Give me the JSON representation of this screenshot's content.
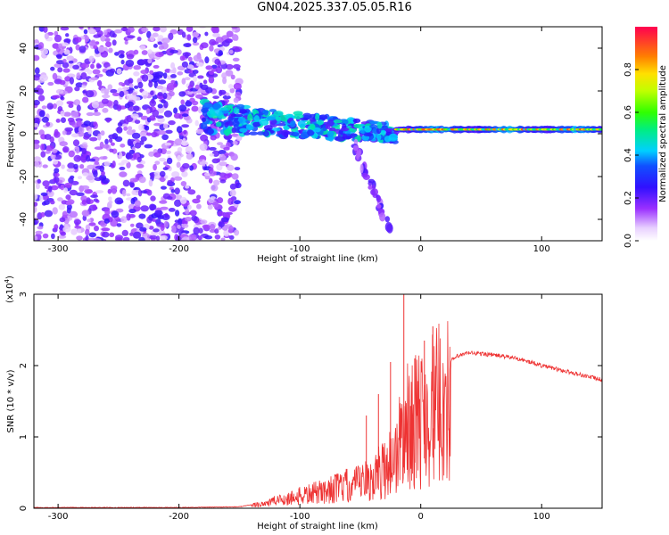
{
  "title": "GN04.2025.337.05.05.R16",
  "chart_data": [
    {
      "type": "heatmap",
      "title": "",
      "xlabel": "Height of straight line (km)",
      "ylabel": "Frequency (Hz)",
      "xlim": [
        -320,
        150
      ],
      "ylim": [
        -50,
        50
      ],
      "x_ticks": [
        -300,
        -200,
        -100,
        0,
        100
      ],
      "y_ticks": [
        -40,
        -20,
        0,
        20,
        40
      ],
      "grid": false,
      "regions": [
        {
          "label": "broadband noise",
          "x": [
            -320,
            -150
          ],
          "y": [
            -50,
            50
          ],
          "amplitude": [
            0.05,
            0.25
          ]
        },
        {
          "label": "signal band",
          "x": [
            -180,
            -20
          ],
          "y": [
            -15,
            15
          ],
          "amplitude": [
            0.2,
            0.5
          ]
        },
        {
          "label": "tail",
          "x": [
            -55,
            -25
          ],
          "y": [
            -45,
            -5
          ],
          "amplitude": [
            0.1,
            0.25
          ]
        },
        {
          "label": "carrier",
          "x": [
            -20,
            150
          ],
          "y": [
            0,
            4
          ],
          "amplitude": [
            0.4,
            0.95
          ]
        }
      ],
      "colorbar": {
        "label": "Normalized spectral amplitude",
        "range": [
          0,
          1
        ],
        "ticks": [
          0.0,
          0.2,
          0.4,
          0.6,
          0.8
        ]
      }
    },
    {
      "type": "line",
      "title": "",
      "xlabel": "Height of straight line (km)",
      "ylabel": "SNR (10 * v/v)",
      "y_scale_label": "(x10",
      "y_scale_exp": "4",
      "y_scale_close": ")",
      "xlim": [
        -320,
        150
      ],
      "ylim": [
        0,
        3
      ],
      "x_ticks": [
        -300,
        -200,
        -100,
        0,
        100
      ],
      "y_ticks": [
        0,
        1,
        2,
        3
      ],
      "grid": false,
      "series": [
        {
          "color": "#ee3333",
          "x": [
            -320,
            -200,
            -150,
            -135,
            -120,
            -100,
            -80,
            -60,
            -40,
            -30,
            -20,
            -15,
            -10,
            -5,
            0,
            10,
            20,
            30,
            40,
            60,
            80,
            90,
            100,
            120,
            150
          ],
          "y": [
            0.01,
            0.01,
            0.02,
            0.06,
            0.12,
            0.2,
            0.28,
            0.38,
            0.55,
            0.75,
            1.0,
            1.4,
            1.55,
            1.6,
            1.7,
            1.85,
            2.0,
            2.13,
            2.18,
            2.15,
            2.1,
            2.05,
            2.0,
            1.92,
            1.8
          ],
          "spikes": [
            {
              "x": -14,
              "y": 3.0
            },
            {
              "x": 10,
              "y": 2.55
            },
            {
              "x": -25,
              "y": 2.05
            },
            {
              "x": -35,
              "y": 1.6
            },
            {
              "x": -5,
              "y": 2.1
            },
            {
              "x": 3,
              "y": 2.35
            },
            {
              "x": -45,
              "y": 1.3
            }
          ]
        }
      ]
    }
  ]
}
